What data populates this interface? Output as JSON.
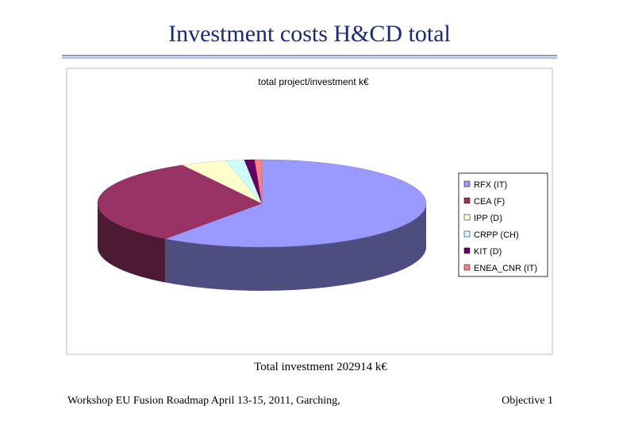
{
  "slide_title": "Investment costs H&CD total",
  "caption": "Total investment 202914 k€",
  "footer": {
    "left": "Workshop EU Fusion Roadmap April 13-15, 2011, Garching,",
    "right": "Objective 1"
  },
  "chart_data": {
    "type": "pie",
    "title": "total project/investment k€",
    "categories": [
      "RFX (IT)",
      "CEA (F)",
      "IPP (D)",
      "CRPP (CH)",
      "KIT (D)",
      "ENEA_CNR (IT)"
    ],
    "values": [
      60,
      32,
      4.5,
      1.8,
      1,
      0.7
    ],
    "colors": [
      "#9999ff",
      "#993366",
      "#ffffcc",
      "#ccffff",
      "#660066",
      "#ff8080"
    ],
    "legend": "right"
  }
}
